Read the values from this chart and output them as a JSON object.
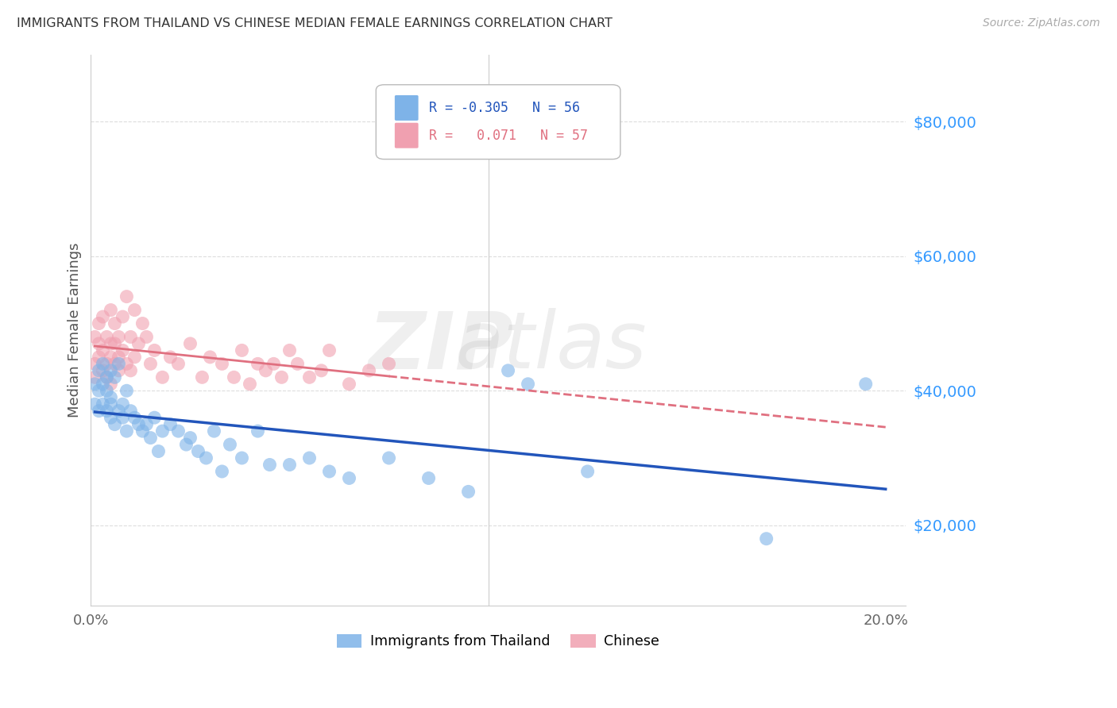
{
  "title": "IMMIGRANTS FROM THAILAND VS CHINESE MEDIAN FEMALE EARNINGS CORRELATION CHART",
  "source": "Source: ZipAtlas.com",
  "ylabel": "Median Female Earnings",
  "xlim": [
    0.0,
    0.205
  ],
  "ylim": [
    8000,
    90000
  ],
  "yticks": [
    20000,
    40000,
    60000,
    80000
  ],
  "ytick_labels": [
    "$20,000",
    "$40,000",
    "$60,000",
    "$80,000"
  ],
  "legend_R1": "-0.305",
  "legend_N1": "56",
  "legend_R2": "0.071",
  "legend_N2": "57",
  "blue_color": "#7EB3E8",
  "pink_color": "#F0A0B0",
  "line_blue": "#2255BB",
  "line_pink": "#E07080",
  "background_color": "#FFFFFF",
  "grid_color": "#DDDDDD",
  "title_color": "#333333",
  "ytick_color": "#3399FF",
  "xtick_color": "#666666",
  "thailand_x": [
    0.001,
    0.001,
    0.002,
    0.002,
    0.002,
    0.003,
    0.003,
    0.003,
    0.004,
    0.004,
    0.004,
    0.005,
    0.005,
    0.005,
    0.005,
    0.006,
    0.006,
    0.007,
    0.007,
    0.008,
    0.008,
    0.009,
    0.009,
    0.01,
    0.011,
    0.012,
    0.013,
    0.014,
    0.015,
    0.016,
    0.017,
    0.018,
    0.02,
    0.022,
    0.024,
    0.025,
    0.027,
    0.029,
    0.031,
    0.033,
    0.035,
    0.038,
    0.042,
    0.045,
    0.05,
    0.055,
    0.06,
    0.065,
    0.075,
    0.085,
    0.095,
    0.105,
    0.11,
    0.125,
    0.17,
    0.195
  ],
  "thailand_y": [
    41000,
    38000,
    43000,
    40000,
    37000,
    44000,
    38000,
    41000,
    42000,
    37000,
    40000,
    39000,
    36000,
    43000,
    38000,
    42000,
    35000,
    44000,
    37000,
    38000,
    36000,
    40000,
    34000,
    37000,
    36000,
    35000,
    34000,
    35000,
    33000,
    36000,
    31000,
    34000,
    35000,
    34000,
    32000,
    33000,
    31000,
    30000,
    34000,
    28000,
    32000,
    30000,
    34000,
    29000,
    29000,
    30000,
    28000,
    27000,
    30000,
    27000,
    25000,
    43000,
    41000,
    28000,
    18000,
    41000
  ],
  "chinese_x": [
    0.001,
    0.001,
    0.001,
    0.002,
    0.002,
    0.002,
    0.003,
    0.003,
    0.003,
    0.004,
    0.004,
    0.004,
    0.005,
    0.005,
    0.005,
    0.005,
    0.006,
    0.006,
    0.006,
    0.007,
    0.007,
    0.007,
    0.008,
    0.008,
    0.009,
    0.009,
    0.01,
    0.01,
    0.011,
    0.011,
    0.012,
    0.013,
    0.014,
    0.015,
    0.016,
    0.018,
    0.02,
    0.022,
    0.025,
    0.028,
    0.03,
    0.033,
    0.036,
    0.038,
    0.04,
    0.042,
    0.044,
    0.046,
    0.048,
    0.05,
    0.052,
    0.055,
    0.058,
    0.06,
    0.065,
    0.07,
    0.075
  ],
  "chinese_y": [
    44000,
    48000,
    42000,
    45000,
    50000,
    47000,
    43000,
    46000,
    51000,
    44000,
    48000,
    42000,
    47000,
    45000,
    52000,
    41000,
    47000,
    44000,
    50000,
    48000,
    43000,
    45000,
    51000,
    46000,
    54000,
    44000,
    48000,
    43000,
    52000,
    45000,
    47000,
    50000,
    48000,
    44000,
    46000,
    42000,
    45000,
    44000,
    47000,
    42000,
    45000,
    44000,
    42000,
    46000,
    41000,
    44000,
    43000,
    44000,
    42000,
    46000,
    44000,
    42000,
    43000,
    46000,
    41000,
    43000,
    44000
  ]
}
